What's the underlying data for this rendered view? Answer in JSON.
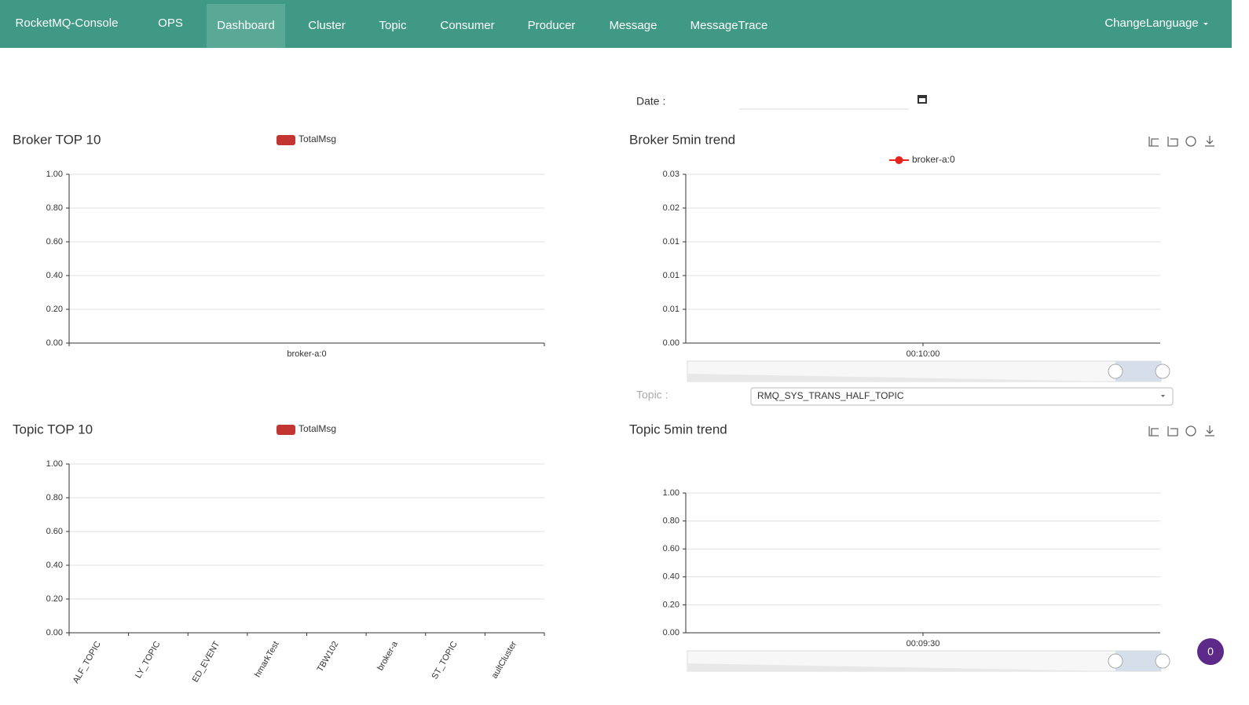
{
  "nav": {
    "brand": "RocketMQ-Console",
    "items": [
      "OPS",
      "Dashboard",
      "Cluster",
      "Topic",
      "Consumer",
      "Producer",
      "Message",
      "MessageTrace"
    ],
    "active": "Dashboard",
    "language": "ChangeLanguage"
  },
  "date_label": "Date :",
  "topic_label": "Topic :",
  "topic_select": "RMQ_SYS_TRANS_HALF_TOPIC",
  "badge": "0",
  "charts": [
    {
      "type": "bar",
      "title": "Broker TOP 10",
      "categories": [
        "broker-a:0"
      ],
      "series": [
        {
          "name": "TotalMsg",
          "color": "#c23531",
          "values": [
            0
          ]
        }
      ],
      "ylim": [
        0,
        1
      ],
      "yticks": [
        {
          "value": 0,
          "label": "0.00"
        },
        {
          "value": 0.2,
          "label": "0.20"
        },
        {
          "value": 0.4,
          "label": "0.40"
        },
        {
          "value": 0.6,
          "label": "0.60"
        },
        {
          "value": 0.8,
          "label": "0.80"
        },
        {
          "value": 1,
          "label": "1.00"
        }
      ],
      "grid": true
    },
    {
      "type": "line",
      "title": "Broker 5min trend",
      "categories": [
        "00:10:00"
      ],
      "series": [
        {
          "name": "broker-a:0",
          "color": "#e6231f",
          "values": [
            0
          ]
        }
      ],
      "ylim": [
        0,
        0.025
      ],
      "yticks": [
        {
          "value": 0,
          "label": "0.00"
        },
        {
          "value": 0.005,
          "label": "0.01"
        },
        {
          "value": 0.01,
          "label": "0.01"
        },
        {
          "value": 0.015,
          "label": "0.01"
        },
        {
          "value": 0.02,
          "label": "0.02"
        },
        {
          "value": 0.025,
          "label": "0.03"
        }
      ],
      "grid": true
    },
    {
      "type": "bar",
      "title": "Topic TOP 10",
      "categories": [
        "ALF_TOPIC",
        "LY_TOPIC",
        "ED_EVENT",
        "hmarkTest",
        "TBW102",
        "broker-a",
        "ST_TOPIC",
        "aultCluster"
      ],
      "series": [
        {
          "name": "TotalMsg",
          "color": "#c23531",
          "values": [
            0,
            0,
            0,
            0,
            0,
            0,
            0,
            0
          ]
        }
      ],
      "ylim": [
        0,
        1
      ],
      "yticks": [
        {
          "value": 0,
          "label": "0.00"
        },
        {
          "value": 0.2,
          "label": "0.20"
        },
        {
          "value": 0.4,
          "label": "0.40"
        },
        {
          "value": 0.6,
          "label": "0.60"
        },
        {
          "value": 0.8,
          "label": "0.80"
        },
        {
          "value": 1,
          "label": "1.00"
        }
      ],
      "grid": true
    },
    {
      "type": "line",
      "title": "Topic 5min trend",
      "categories": [
        "00:09:30"
      ],
      "series": [
        {
          "color": "#c23531",
          "values": [
            0
          ]
        }
      ],
      "ylim": [
        0,
        1
      ],
      "yticks": [
        {
          "value": 0,
          "label": "0.00"
        },
        {
          "value": 0.2,
          "label": "0.20"
        },
        {
          "value": 0.4,
          "label": "0.40"
        },
        {
          "value": 0.6,
          "label": "0.60"
        },
        {
          "value": 0.8,
          "label": "0.80"
        },
        {
          "value": 1,
          "label": "1.00"
        }
      ],
      "grid": true
    }
  ]
}
